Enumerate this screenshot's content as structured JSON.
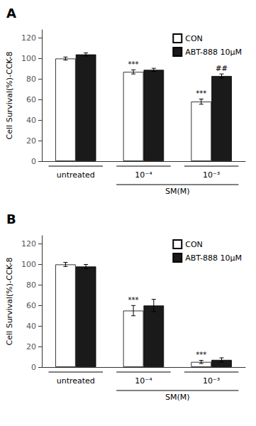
{
  "chart_data": [
    {
      "type": "bar",
      "title": "A",
      "categories": [
        "untreated",
        "10⁻⁴",
        "10⁻³"
      ],
      "xlabel": "SM(M)",
      "ylabel": "Cell Survival(%)-CCK-8",
      "series": [
        {
          "name": "CON",
          "color": "#ffffff",
          "values": [
            100,
            87,
            58
          ],
          "errors": [
            1.5,
            2,
            2.5
          ],
          "annotations": [
            null,
            "***",
            "***"
          ]
        },
        {
          "name": "ABT-888 10μM",
          "color": "#1a1a1a",
          "values": [
            104,
            89,
            83
          ],
          "errors": [
            1.5,
            1.5,
            2
          ],
          "annotations": [
            null,
            null,
            "##"
          ]
        }
      ],
      "ylim": [
        0,
        128
      ],
      "yticks": [
        0,
        20,
        40,
        60,
        80,
        100,
        120
      ],
      "grid": false,
      "legend": "upper right"
    },
    {
      "type": "bar",
      "title": "B",
      "categories": [
        "untreated",
        "10⁻⁴",
        "10⁻³"
      ],
      "xlabel": "SM(M)",
      "ylabel": "Cell Survival(%)-CCK-8",
      "series": [
        {
          "name": "CON",
          "color": "#ffffff",
          "values": [
            100,
            55,
            5
          ],
          "errors": [
            2,
            5,
            1.5
          ],
          "annotations": [
            null,
            "***",
            "***"
          ]
        },
        {
          "name": "ABT-888 10μM",
          "color": "#1a1a1a",
          "values": [
            98,
            60,
            7
          ],
          "errors": [
            2,
            6,
            2
          ],
          "annotations": [
            null,
            null,
            null
          ]
        }
      ],
      "ylim": [
        0,
        128
      ],
      "yticks": [
        0,
        20,
        40,
        60,
        80,
        100,
        120
      ],
      "grid": false,
      "legend": "upper right"
    }
  ]
}
